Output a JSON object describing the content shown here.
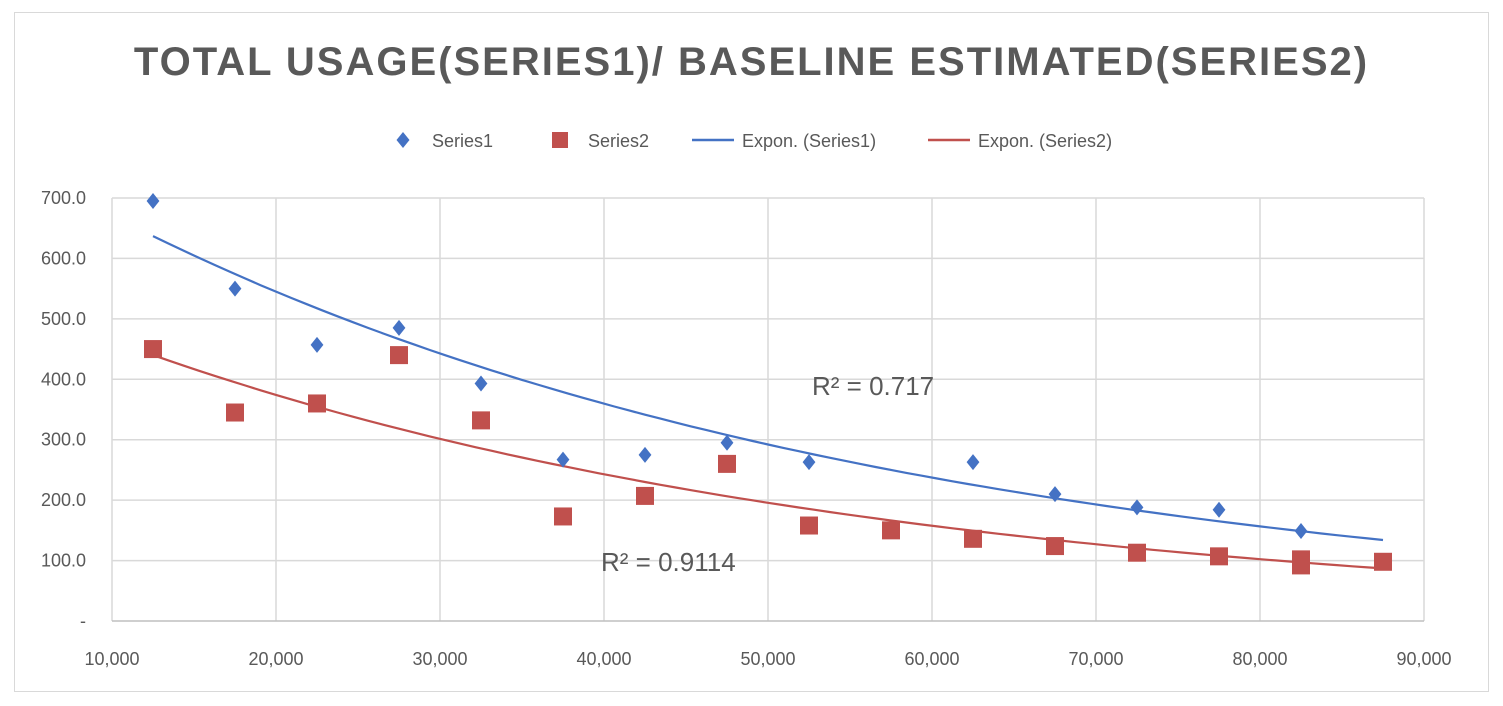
{
  "chart_data": {
    "type": "scatter",
    "title": "TOTAL USAGE(SERIES1)/ BASELINE ESTIMATED(SERIES2)",
    "xlim": [
      10000,
      90000
    ],
    "ylim": [
      0,
      700
    ],
    "x_ticks": [
      10000,
      20000,
      30000,
      40000,
      50000,
      60000,
      70000,
      80000,
      90000
    ],
    "x_tick_labels": [
      "10,000",
      "20,000",
      "30,000",
      "40,000",
      "50,000",
      "60,000",
      "70,000",
      "80,000",
      "90,000"
    ],
    "y_ticks": [
      0,
      100,
      200,
      300,
      400,
      500,
      600,
      700
    ],
    "y_tick_labels": [
      "-",
      "100.0",
      "200.0",
      "300.0",
      "400.0",
      "500.0",
      "600.0",
      "700.0"
    ],
    "grid": true,
    "legend_position": "top",
    "legend": [
      "Series1",
      "Series2",
      "Expon. (Series1)",
      "Expon. (Series2)"
    ],
    "series": [
      {
        "name": "Series1",
        "marker": "diamond",
        "color": "#4472c4",
        "points": [
          [
            12500,
            695
          ],
          [
            17500,
            550
          ],
          [
            22500,
            457
          ],
          [
            27500,
            485
          ],
          [
            32500,
            393
          ],
          [
            37500,
            267
          ],
          [
            42500,
            275
          ],
          [
            47500,
            295
          ],
          [
            52500,
            263
          ],
          [
            62500,
            263
          ],
          [
            67500,
            210
          ],
          [
            72500,
            188
          ],
          [
            77500,
            184
          ],
          [
            82500,
            149
          ]
        ]
      },
      {
        "name": "Series2",
        "marker": "square",
        "color": "#c0504d",
        "points": [
          [
            12500,
            450
          ],
          [
            17500,
            345
          ],
          [
            22500,
            360
          ],
          [
            27500,
            440
          ],
          [
            32500,
            332
          ],
          [
            37500,
            173
          ],
          [
            42500,
            207
          ],
          [
            47500,
            260
          ],
          [
            52500,
            158
          ],
          [
            57500,
            150
          ],
          [
            62500,
            136
          ],
          [
            67500,
            124
          ],
          [
            72500,
            113
          ],
          [
            77500,
            107
          ],
          [
            82500,
            102
          ],
          [
            82500,
            92
          ],
          [
            87500,
            98
          ]
        ]
      }
    ],
    "trendlines": [
      {
        "name": "Expon. (Series1)",
        "color": "#4472c4",
        "x_range": [
          12500,
          87500
        ],
        "points": [
          [
            12500,
            637
          ],
          [
            37500,
            380
          ],
          [
            62500,
            226
          ],
          [
            87500,
            134
          ]
        ],
        "r2_label": "R² = 0.717"
      },
      {
        "name": "Expon. (Series2)",
        "color": "#c0504d",
        "x_range": [
          12500,
          87500
        ],
        "points": [
          [
            12500,
            440
          ],
          [
            37500,
            243
          ],
          [
            62500,
            153
          ],
          [
            87500,
            87
          ]
        ],
        "r2_label": "R² = 0.9114"
      }
    ]
  }
}
